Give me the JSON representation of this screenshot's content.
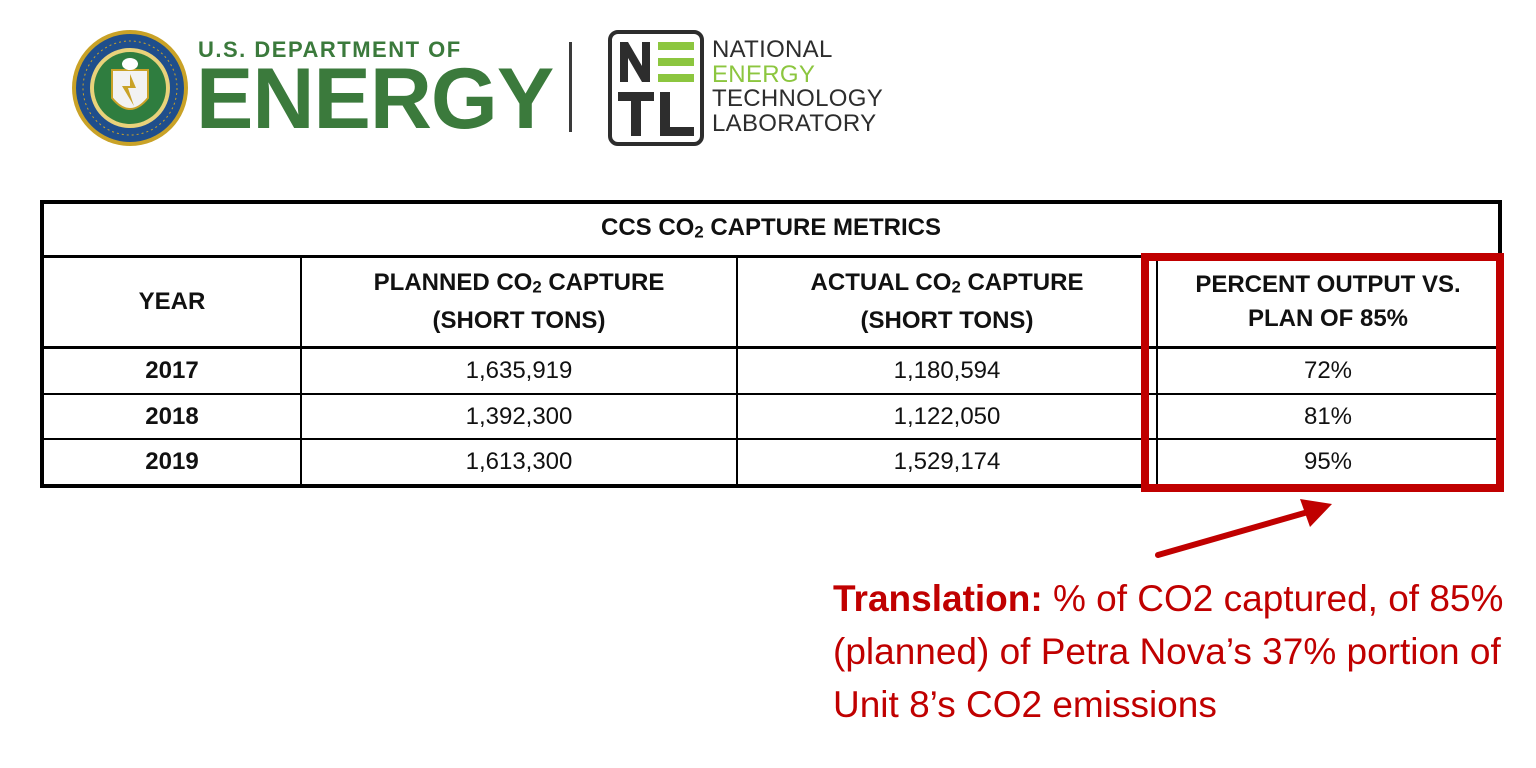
{
  "logos": {
    "doe": {
      "small_text": "U.S. DEPARTMENT OF",
      "big_text": "ENERGY",
      "seal_text": "DEPARTMENT OF ENERGY · UNITED STATES OF AMERICA",
      "color": "#3b7a3c"
    },
    "netl": {
      "letters": [
        "N",
        "E",
        "T",
        "L"
      ],
      "lines": [
        "NATIONAL",
        "ENERGY",
        "TECHNOLOGY",
        "LABORATORY"
      ],
      "accent_color": "#8cc63f"
    }
  },
  "table": {
    "title_prefix": "CCS CO",
    "title_sub": "2",
    "title_suffix": " CAPTURE METRICS",
    "columns": [
      {
        "line1": "YEAR",
        "line2": ""
      },
      {
        "line1_prefix": "PLANNED CO",
        "line1_sub": "2",
        "line1_suffix": " CAPTURE",
        "line2": "(SHORT TONS)"
      },
      {
        "line1_prefix": "ACTUAL CO",
        "line1_sub": "2",
        "line1_suffix": " CAPTURE",
        "line2": "(SHORT TONS)"
      },
      {
        "line1": "PERCENT OUTPUT VS.",
        "line2": "PLAN OF 85%"
      }
    ],
    "rows": [
      {
        "year": "2017",
        "planned": "1,635,919",
        "actual": "1,180,594",
        "percent": "72%"
      },
      {
        "year": "2018",
        "planned": "1,392,300",
        "actual": "1,122,050",
        "percent": "81%"
      },
      {
        "year": "2019",
        "planned": "1,613,300",
        "actual": "1,529,174",
        "percent": "95%"
      }
    ]
  },
  "callout": {
    "color": "#c00000",
    "label": "Translation:",
    "text": " % of CO2 captured, of 85% (planned) of Petra Nova’s 37% portion of Unit 8’s CO2 emissions"
  }
}
